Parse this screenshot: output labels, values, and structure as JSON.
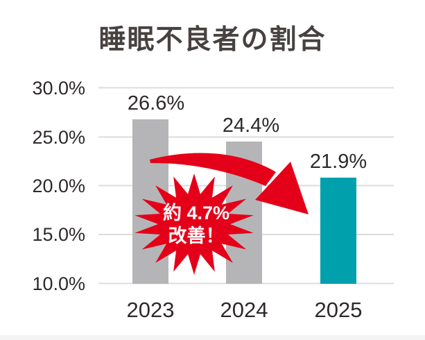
{
  "title": "睡眠不良者の割合",
  "chart_data": {
    "type": "bar",
    "title": "睡眠不良者の割合",
    "categories": [
      "2023",
      "2024",
      "2025"
    ],
    "values": [
      26.6,
      24.4,
      21.9
    ],
    "value_labels": [
      "26.6%",
      "24.4%",
      "21.9%"
    ],
    "y_ticks": [
      "30.0%",
      "25.0%",
      "20.0%",
      "15.0%",
      "10.0%"
    ],
    "y_tick_values": [
      30.0,
      25.0,
      20.0,
      15.0,
      10.0
    ],
    "ylim": [
      10.0,
      30.0
    ],
    "xlabel": "",
    "ylabel": "",
    "grid": true,
    "legend": "none",
    "bar_colors": [
      "#b5b5b7",
      "#b5b5b7",
      "#00a1ad"
    ]
  },
  "badge": {
    "line1": "約 4.7%",
    "line2": "改善！"
  },
  "colors": {
    "accent_red": "#e50019",
    "bar_gray": "#b5b5b7",
    "bar_teal": "#00a1ad",
    "grid_line": "#dcdcdc",
    "text_dark": "#2d2a29",
    "title_text": "#474140",
    "badge_text": "#ffffff",
    "bottom_strip": "#f5f4f4",
    "background": "#ffffff"
  }
}
